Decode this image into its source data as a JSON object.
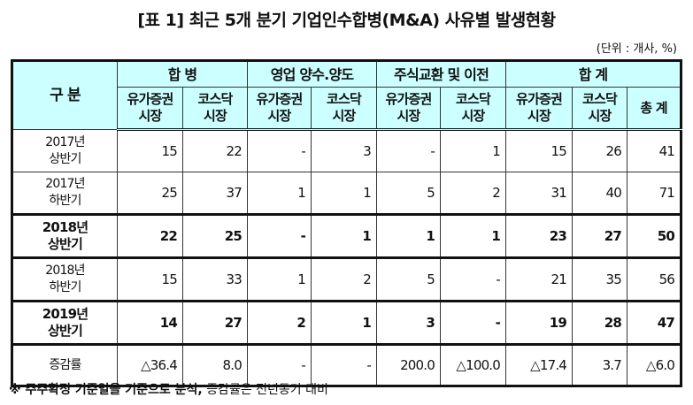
{
  "title": "[표 1] 최근 5개 분기 기업인수합병(M&A) 사유별 발생현황",
  "unit": "(단위 : 개사, %)",
  "header": {
    "category": "구 분",
    "groups": [
      "합 병",
      "영업 양수.양도",
      "주식교환 및 이전",
      "합 계"
    ],
    "sub": [
      "유가증권\n시장",
      "코스닥\n시장",
      "유가증권\n시장",
      "코스닥\n시장",
      "유가증권\n시장",
      "코스닥\n시장",
      "유가증권\n시장",
      "코스닥\n시장",
      "총 계"
    ]
  },
  "rows": [
    {
      "label": "2017년\n상반기",
      "bold": false,
      "values": [
        "15",
        "22",
        "-",
        "3",
        "-",
        "1",
        "15",
        "26",
        "41"
      ]
    },
    {
      "label": "2017년\n하반기",
      "bold": false,
      "values": [
        "25",
        "37",
        "1",
        "1",
        "5",
        "2",
        "31",
        "40",
        "71"
      ]
    },
    {
      "label": "2018년\n상반기",
      "bold": true,
      "values": [
        "22",
        "25",
        "-",
        "1",
        "1",
        "1",
        "23",
        "27",
        "50"
      ]
    },
    {
      "label": "2018년\n하반기",
      "bold": false,
      "values": [
        "15",
        "33",
        "1",
        "2",
        "5",
        "-",
        "21",
        "35",
        "56"
      ]
    },
    {
      "label": "2019년\n상반기",
      "bold": true,
      "values": [
        "14",
        "27",
        "2",
        "1",
        "3",
        "-",
        "19",
        "28",
        "47"
      ]
    },
    {
      "label": "증감률",
      "bold": false,
      "values": [
        "△36.4",
        "8.0",
        "-",
        "-",
        "200.0",
        "△100.0",
        "△17.4",
        "3.7",
        "△6.0"
      ]
    }
  ],
  "footnote": {
    "bold": "※ 주주확정 기준일을 기준으로 분석,",
    "rest": " 증감률은 전년동기 대비"
  },
  "colors": {
    "header_bg": "#ccffff"
  }
}
